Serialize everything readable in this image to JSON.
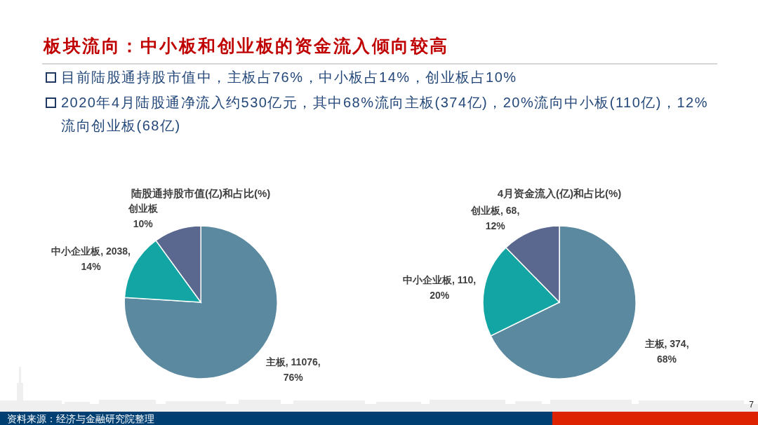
{
  "chart_data": [
    {
      "type": "other",
      "title": "板块流向：中小板和创业板的资金流入倾向较高",
      "annotations": [
        "目前陆股通持股市值中，主板占76%，中小板占14%，创业板占10%",
        "2020年4月陆股通净流入约530亿元，其中68%流向主板(374亿)，20%流向中小板(110亿)，12%流向创业板(68亿)",
        "资料来源：经济与金融研究院整理",
        "7"
      ]
    },
    {
      "type": "pie",
      "title": "陆股通持股市值(亿)和占比(%)",
      "categories": [
        "主板",
        "中小企业板",
        "创业板"
      ],
      "values": [
        76,
        14,
        10
      ],
      "value_labels": [
        "11076, 76%",
        "2038, 14%",
        "10%"
      ],
      "colors": [
        "#5b89a0",
        "#12a5a3",
        "#5a6890"
      ]
    },
    {
      "type": "pie",
      "title": "4月资金流入(亿)和占比(%)",
      "categories": [
        "主板",
        "中小企业板",
        "创业板"
      ],
      "values": [
        374,
        110,
        68
      ],
      "value_labels": [
        "374, 68%",
        "110, 20%",
        "68, 12%"
      ],
      "colors": [
        "#5b89a0",
        "#12a5a3",
        "#5a6890"
      ]
    }
  ]
}
